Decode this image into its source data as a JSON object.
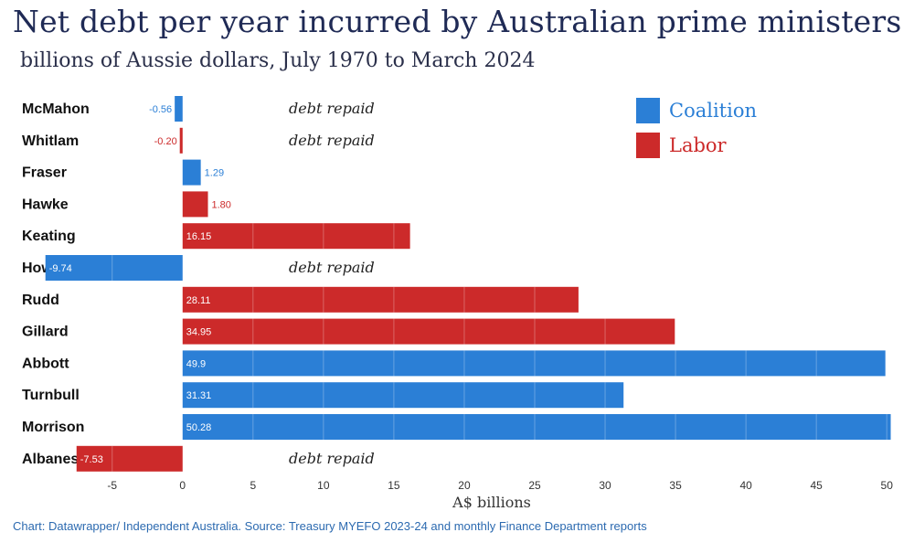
{
  "chart_data": {
    "type": "bar",
    "orientation": "horizontal",
    "title": "Net debt per year incurred by Australian prime ministers",
    "subtitle": "billions of Aussie dollars, July 1970 to March 2024",
    "xlabel": "A$ billions",
    "xlim": [
      -6.8,
      50.7
    ],
    "xticks": [
      "-5",
      "0",
      "5",
      "10",
      "15",
      "20",
      "25",
      "30",
      "35",
      "40",
      "45",
      "50"
    ],
    "grid": false,
    "legend_position": "top-right",
    "legend": [
      {
        "name": "Coalition",
        "color": "#2b7fd6"
      },
      {
        "name": "Labor",
        "color": "#cc2a2a"
      }
    ],
    "categories": [
      "McMahon",
      "Whitlam",
      "Fraser",
      "Hawke",
      "Keating",
      "Howard",
      "Rudd",
      "Gillard",
      "Abbott",
      "Turnbull",
      "Morrison",
      "Albanese"
    ],
    "values": [
      -0.56,
      -0.2,
      1.29,
      1.8,
      16.15,
      -9.74,
      28.11,
      34.95,
      49.9,
      31.31,
      50.28,
      -7.53
    ],
    "value_labels": [
      "-0.56",
      "-0.20",
      "1.29",
      "1.80",
      "16.15",
      "-9.74",
      "28.11",
      "34.95",
      "49.9",
      "31.31",
      "50.28",
      "-7.53"
    ],
    "party": [
      "Coalition",
      "Labor",
      "Coalition",
      "Labor",
      "Labor",
      "Coalition",
      "Labor",
      "Labor",
      "Coalition",
      "Coalition",
      "Coalition",
      "Labor"
    ],
    "annotations": [
      "debt repaid",
      "debt repaid",
      "",
      "",
      "",
      "debt repaid",
      "",
      "",
      "",
      "",
      "",
      "debt repaid"
    ]
  },
  "footer": "Chart: Datawrapper/ Independent Australia. Source: Treasury MYEFO 2023-24 and monthly Finance Department reports"
}
